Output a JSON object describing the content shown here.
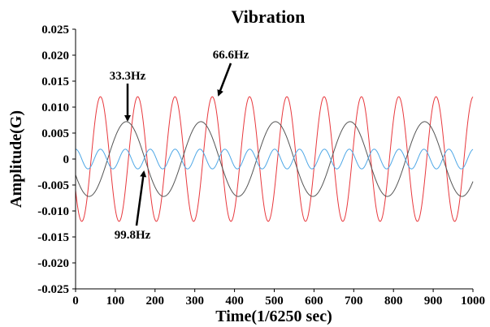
{
  "chart_data": {
    "type": "line",
    "title": "Vibration",
    "xlabel": "Time(1/6250 sec)",
    "ylabel": "Amplitude(G)",
    "xlim": [
      0,
      1000
    ],
    "ylim": [
      -0.025,
      0.025
    ],
    "x_ticks": [
      "0",
      "100",
      "200",
      "300",
      "400",
      "500",
      "600",
      "700",
      "800",
      "900",
      "1000"
    ],
    "y_ticks": [
      "0.025",
      "0.020",
      "0.015",
      "0.010",
      "0.005",
      "0",
      "-0.005",
      "-0.010",
      "-0.015",
      "-0.020",
      "-0.025"
    ],
    "grid": false,
    "series": [
      {
        "name": "",
        "color": "#e8383d",
        "amplitude": 0.012,
        "frequency_hz": 66.6,
        "phase_deg": 210
      },
      {
        "name": "",
        "color": "#555555",
        "amplitude": 0.0072,
        "frequency_hz": 33.3,
        "phase_deg": 205
      },
      {
        "name": "",
        "color": "#4ea7e6",
        "amplitude": 0.0019,
        "frequency_hz": 99.8,
        "phase_deg": 90
      }
    ],
    "sample_rate_hz": 6250,
    "annotations": [
      {
        "text": "33.3Hz",
        "x": 130,
        "y": 0.0072
      },
      {
        "text": "66.6Hz",
        "x": 352,
        "y": 0.012
      },
      {
        "text": "99.8Hz",
        "x": 172,
        "y": -0.002
      }
    ]
  }
}
